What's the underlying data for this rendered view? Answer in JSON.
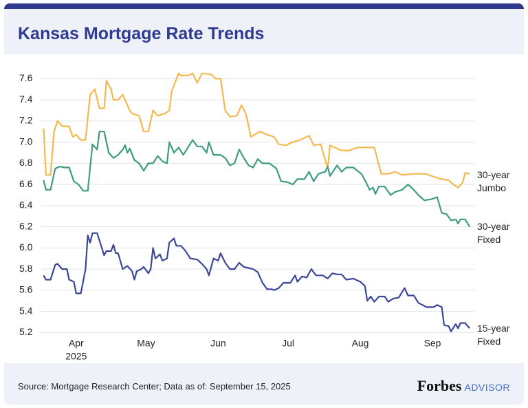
{
  "chart_data": {
    "type": "line",
    "title": "Kansas Mortgage Rate Trends",
    "xlim": [
      76,
      262
    ],
    "xticks": [
      {
        "value": 91,
        "label": "Apr"
      },
      {
        "value": 121,
        "label": "May"
      },
      {
        "value": 152,
        "label": "Jun"
      },
      {
        "value": 182,
        "label": "Jul"
      },
      {
        "value": 213,
        "label": "Aug"
      },
      {
        "value": 244,
        "label": "Sep"
      }
    ],
    "x_year_label": "2025",
    "ylim": [
      5.15,
      7.7
    ],
    "yticks": [
      5.2,
      5.4,
      5.6,
      5.8,
      {
        "value": 6,
        "label": "6.0"
      },
      6.2,
      6.4,
      6.6,
      6.8,
      {
        "value": 7,
        "label": "7.0"
      },
      7.2,
      7.4,
      7.6
    ],
    "grid": true,
    "series": [
      {
        "name": "30-year Jumbo",
        "color": "#f5b84c",
        "x": [
          77,
          78,
          80,
          81.5,
          83,
          85,
          88,
          89.5,
          91,
          93,
          95,
          97,
          99,
          101,
          103,
          104,
          106,
          107,
          109,
          111,
          113,
          114,
          115,
          118,
          120,
          122,
          124,
          126,
          129,
          131,
          132,
          135,
          136,
          139,
          141,
          143,
          145,
          149,
          151,
          153,
          155,
          157,
          160,
          162,
          164,
          166,
          170,
          173,
          176,
          178,
          181,
          184,
          187,
          189,
          191,
          193,
          196,
          199,
          200,
          205,
          208,
          212,
          216,
          219,
          222,
          225,
          228,
          231,
          236,
          241,
          245,
          248,
          251,
          253,
          255,
          257,
          258,
          260
        ],
        "values": [
          7.13,
          6.69,
          6.69,
          7.1,
          7.2,
          7.15,
          7.15,
          7.05,
          7.07,
          7.02,
          7.02,
          7.45,
          7.5,
          7.32,
          7.32,
          7.58,
          7.5,
          7.4,
          7.4,
          7.45,
          7.35,
          7.3,
          7.27,
          7.25,
          7.1,
          7.1,
          7.3,
          7.25,
          7.27,
          7.3,
          7.48,
          7.65,
          7.63,
          7.63,
          7.65,
          7.56,
          7.65,
          7.64,
          7.6,
          7.6,
          7.3,
          7.24,
          7.25,
          7.35,
          7.26,
          7.05,
          7.1,
          7.07,
          7.05,
          6.98,
          6.97,
          7.0,
          7.02,
          7.04,
          7.06,
          6.97,
          6.98,
          6.75,
          6.97,
          6.92,
          6.92,
          6.95,
          6.95,
          6.95,
          6.7,
          6.7,
          6.72,
          6.69,
          6.7,
          6.7,
          6.67,
          6.65,
          6.64,
          6.6,
          6.57,
          6.62,
          6.71,
          6.7
        ]
      },
      {
        "name": "30-year Fixed",
        "color": "#3d9c80",
        "x": [
          77,
          78,
          80,
          82,
          84,
          86,
          88,
          90,
          92,
          94,
          96,
          98,
          100,
          101,
          103,
          105,
          107,
          109,
          111,
          112,
          113,
          114,
          116,
          118,
          120,
          122,
          124,
          126,
          128,
          130,
          131,
          133,
          135,
          137,
          139,
          141,
          143,
          145,
          147,
          148,
          150,
          153,
          155,
          157,
          159,
          161,
          163,
          165,
          167,
          169,
          171,
          174,
          177,
          179,
          182,
          184,
          186,
          189,
          191,
          193,
          195,
          198,
          199,
          200,
          203,
          205,
          207,
          210,
          213.5,
          215.5,
          217,
          218.5,
          219.5,
          221,
          223.5,
          226,
          228,
          231,
          233.5,
          235.5,
          238,
          240.5,
          243.5,
          246,
          248,
          250,
          252,
          254,
          255,
          256,
          258,
          260
        ],
        "values": [
          6.64,
          6.55,
          6.55,
          6.75,
          6.77,
          6.76,
          6.76,
          6.63,
          6.6,
          6.54,
          6.54,
          6.98,
          6.93,
          7.1,
          7.1,
          6.9,
          6.85,
          6.88,
          6.93,
          6.97,
          6.9,
          6.94,
          6.83,
          6.8,
          6.73,
          6.8,
          6.8,
          6.87,
          6.82,
          6.8,
          7.0,
          6.9,
          6.95,
          6.88,
          6.95,
          7.02,
          6.96,
          6.96,
          6.9,
          7.0,
          6.88,
          6.88,
          6.85,
          6.78,
          6.8,
          6.93,
          6.85,
          6.78,
          6.76,
          6.84,
          6.8,
          6.8,
          6.75,
          6.63,
          6.62,
          6.6,
          6.65,
          6.65,
          6.72,
          6.63,
          6.7,
          6.72,
          6.77,
          6.68,
          6.78,
          6.72,
          6.76,
          6.76,
          6.7,
          6.62,
          6.55,
          6.57,
          6.51,
          6.58,
          6.58,
          6.5,
          6.53,
          6.55,
          6.6,
          6.56,
          6.5,
          6.45,
          6.46,
          6.48,
          6.33,
          6.32,
          6.26,
          6.27,
          6.23,
          6.27,
          6.27,
          6.2
        ]
      },
      {
        "name": "15-year Fixed",
        "color": "#3a4796",
        "x": [
          77,
          78,
          80,
          82,
          83,
          85,
          87,
          88,
          90,
          91,
          93,
          95,
          96,
          97,
          98,
          100,
          102,
          103,
          104,
          106,
          107,
          108,
          109,
          111,
          113,
          115,
          116,
          117,
          119,
          120,
          122,
          123,
          124,
          125,
          127,
          128,
          130,
          131,
          133,
          134,
          136,
          138,
          140,
          143,
          145,
          147,
          148,
          150,
          152,
          153,
          155,
          157,
          159,
          161,
          163,
          165,
          167,
          169,
          171,
          173,
          175,
          176,
          178,
          180,
          183,
          185,
          186,
          188,
          190,
          192,
          194,
          197,
          199,
          201,
          203,
          205,
          207,
          210,
          213,
          215,
          216,
          217.5,
          219,
          221,
          223.5,
          225,
          227,
          229.5,
          232,
          233.5,
          236,
          238,
          241.5,
          244.5,
          246,
          248,
          249,
          251,
          252,
          254,
          255,
          256,
          258,
          260
        ],
        "values": [
          5.74,
          5.7,
          5.7,
          5.84,
          5.85,
          5.8,
          5.8,
          5.7,
          5.68,
          5.57,
          5.57,
          5.8,
          6.12,
          6.05,
          6.14,
          6.14,
          6.0,
          5.93,
          5.97,
          5.97,
          6.03,
          5.95,
          5.95,
          5.8,
          5.83,
          5.78,
          5.7,
          5.78,
          5.8,
          5.82,
          5.76,
          5.8,
          6.0,
          5.9,
          5.94,
          5.88,
          5.9,
          6.05,
          6.09,
          6.02,
          6.02,
          5.97,
          5.9,
          5.89,
          5.85,
          5.8,
          5.74,
          5.9,
          5.88,
          5.95,
          5.86,
          5.8,
          5.8,
          5.86,
          5.82,
          5.81,
          5.8,
          5.77,
          5.67,
          5.61,
          5.61,
          5.6,
          5.62,
          5.67,
          5.67,
          5.74,
          5.68,
          5.73,
          5.72,
          5.8,
          5.74,
          5.74,
          5.71,
          5.76,
          5.75,
          5.75,
          5.7,
          5.71,
          5.68,
          5.64,
          5.5,
          5.54,
          5.49,
          5.54,
          5.54,
          5.49,
          5.52,
          5.53,
          5.62,
          5.55,
          5.55,
          5.48,
          5.44,
          5.44,
          5.46,
          5.44,
          5.27,
          5.26,
          5.21,
          5.28,
          5.24,
          5.29,
          5.29,
          5.24
        ]
      }
    ]
  },
  "footer": {
    "source": "Source: Mortgage Research Center; Data as of: September 15, 2025",
    "brand": "Forbes",
    "suffix": "ADVISOR"
  }
}
